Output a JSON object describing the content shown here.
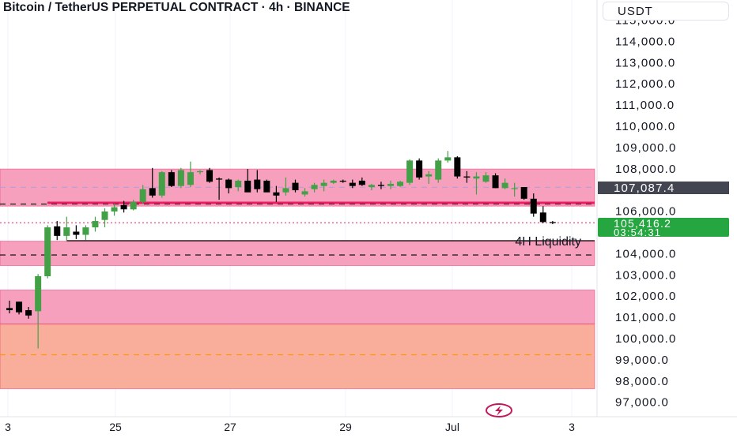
{
  "header": {
    "title": "Bitcoin / TetherUS PERPETUAL CONTRACT · 4h · BINANCE",
    "currency": "USDT"
  },
  "price_axis": {
    "ticks": [
      "115,000.0",
      "114,000.0",
      "113,000.0",
      "112,000.0",
      "111,000.0",
      "110,000.0",
      "109,000.0",
      "108,000.0",
      "106,000.0",
      "104,000.0",
      "103,000.0",
      "102,000.0",
      "101,000.0",
      "100,000.0",
      "99,000.0",
      "98,000.0",
      "97,000.0"
    ],
    "marker_label": {
      "value": "107,087.4",
      "price": 107087.4,
      "color": "#434651"
    },
    "last_price_label": {
      "value": "105,416.2",
      "countdown": "03:54:31",
      "price": 105416.2,
      "color": "#26a641"
    }
  },
  "time_axis": {
    "ticks": [
      "3",
      "25",
      "27",
      "29",
      "Jul",
      "3"
    ]
  },
  "colors": {
    "zone": "#f48fb1",
    "zone_orange": "#f7a08a",
    "bull": "#43a047",
    "bear": "#000000",
    "line_red": "#e91e63"
  },
  "chart_data": {
    "type": "candlestick",
    "title": "Bitcoin / TetherUS PERPETUAL CONTRACT · 4h · BINANCE",
    "interval": "4h",
    "ylim": [
      96700,
      115300
    ],
    "zones": [
      {
        "from": 106200,
        "to": 107950,
        "color": "#f48fb1"
      },
      {
        "from": 103400,
        "to": 104550,
        "color": "#f48fb1"
      },
      {
        "from": 100650,
        "to": 102250,
        "color": "#f48fb1"
      },
      {
        "from": 97600,
        "to": 100650,
        "color": "#f7a08a"
      }
    ],
    "levels": [
      {
        "price": 107090,
        "style": "dashed",
        "color": "#b39ddb"
      },
      {
        "price": 106300,
        "style": "dashed",
        "color": "#000000"
      },
      {
        "price": 103900,
        "style": "dashed",
        "color": "#000000"
      },
      {
        "price": 99200,
        "style": "dashed",
        "color": "#ff9800"
      },
      {
        "price": 105416,
        "style": "dotted",
        "color": "#e91e63"
      }
    ],
    "annotations": [
      {
        "text": "4H Liquidity",
        "price": 104550
      }
    ],
    "candles": [
      [
        101400,
        101750,
        101150,
        101300
      ],
      [
        101700,
        101700,
        101100,
        101200
      ],
      [
        101300,
        101450,
        100900,
        101050
      ],
      [
        101250,
        103000,
        99500,
        102900
      ],
      [
        102900,
        105300,
        102800,
        105200
      ],
      [
        105250,
        105500,
        104600,
        104800
      ],
      [
        104800,
        105700,
        104550,
        105200
      ],
      [
        105000,
        105300,
        104650,
        104850
      ],
      [
        104850,
        105300,
        104600,
        105200
      ],
      [
        105200,
        105700,
        105000,
        105500
      ],
      [
        105550,
        106100,
        105200,
        105950
      ],
      [
        105950,
        106300,
        105750,
        106150
      ],
      [
        106250,
        106450,
        105900,
        106050
      ],
      [
        106050,
        106500,
        106000,
        106400
      ],
      [
        106400,
        107200,
        106300,
        107000
      ],
      [
        107050,
        108000,
        106600,
        106700
      ],
      [
        106700,
        107850,
        106600,
        107800
      ],
      [
        107800,
        107900,
        107100,
        107150
      ],
      [
        107150,
        108000,
        107050,
        107900
      ],
      [
        107200,
        108300,
        107100,
        107800
      ],
      [
        107800,
        107900,
        107700,
        107850
      ],
      [
        107900,
        108000,
        107300,
        107350
      ],
      [
        107500,
        107550,
        106500,
        107450
      ],
      [
        107450,
        107500,
        106800,
        107050
      ],
      [
        107100,
        107450,
        106900,
        107400
      ],
      [
        107400,
        107950,
        106900,
        106850
      ],
      [
        107450,
        107900,
        106850,
        107000
      ],
      [
        107400,
        107450,
        106900,
        106850
      ],
      [
        106850,
        107150,
        106400,
        106700
      ],
      [
        106850,
        107550,
        106700,
        107050
      ],
      [
        107300,
        107450,
        106850,
        106950
      ],
      [
        106750,
        107050,
        106650,
        106900
      ],
      [
        107000,
        107300,
        106850,
        107200
      ],
      [
        107150,
        107450,
        106900,
        107300
      ],
      [
        107300,
        107450,
        107250,
        107400
      ],
      [
        107400,
        107450,
        107300,
        107350
      ],
      [
        107300,
        107450,
        107050,
        107150
      ],
      [
        107400,
        107550,
        107150,
        107200
      ],
      [
        107100,
        107250,
        106950,
        107200
      ],
      [
        107200,
        107350,
        107000,
        107150
      ],
      [
        107150,
        107400,
        107000,
        107250
      ],
      [
        107150,
        107400,
        107100,
        107350
      ],
      [
        107300,
        108400,
        107200,
        108350
      ],
      [
        108350,
        108450,
        107450,
        107550
      ],
      [
        107600,
        107850,
        107250,
        107700
      ],
      [
        107450,
        108450,
        107300,
        108350
      ],
      [
        108350,
        108800,
        108250,
        108500
      ],
      [
        108500,
        108550,
        107500,
        107600
      ],
      [
        107600,
        107850,
        107300,
        107550
      ],
      [
        107500,
        107800,
        106750,
        107600
      ],
      [
        107350,
        107800,
        107300,
        107650
      ],
      [
        107650,
        107750,
        107050,
        107050
      ],
      [
        107050,
        107500,
        107000,
        107300
      ],
      [
        107050,
        107300,
        106650,
        107050
      ],
      [
        107100,
        107100,
        106500,
        106550
      ],
      [
        106550,
        106800,
        105700,
        105850
      ],
      [
        105900,
        106200,
        105400,
        105450
      ],
      [
        105450,
        105500,
        105350,
        105416
      ]
    ]
  }
}
